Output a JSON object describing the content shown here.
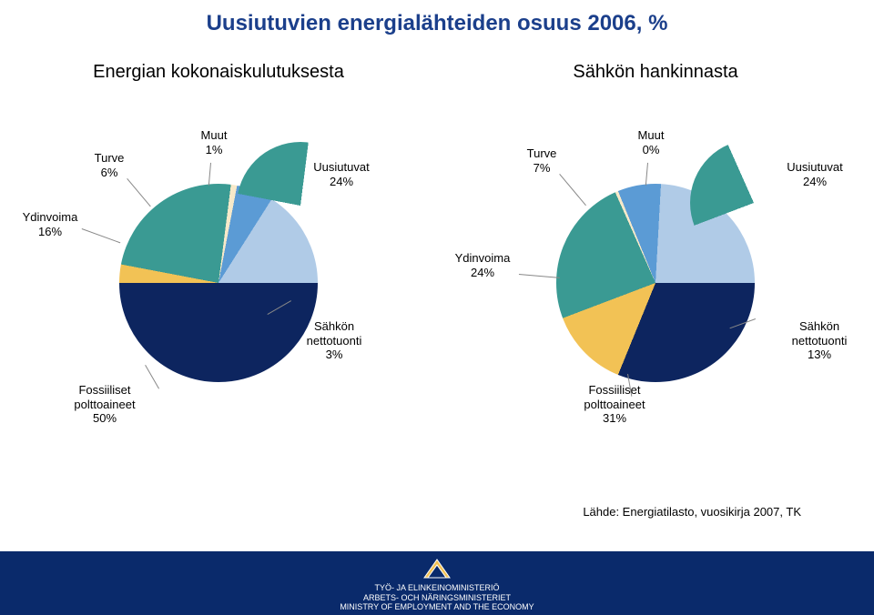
{
  "title": {
    "text": "Uusiutuvien energialähteiden osuus 2006, %",
    "color": "#1b3f8b",
    "fontsize": 24
  },
  "subtitle_left": {
    "text": "Energian kokonaiskulutuksesta",
    "fontsize": 20
  },
  "subtitle_right": {
    "text": "Sähkön hankinnasta",
    "fontsize": 20
  },
  "source": {
    "text": "Lähde: Energiatilasto, vuosikirja 2007, TK",
    "fontsize": 13
  },
  "footer": {
    "line1": "TYÖ- JA ELINKEINOMINISTERIÖ",
    "line2": "ARBETS- OCH NÄRINGSMINISTERIET",
    "line3": "MINISTRY OF EMPLOYMENT AND THE ECONOMY",
    "fontsize": 9,
    "bg": "#0a2a6b"
  },
  "chart_left": {
    "type": "pie_exploded",
    "main_diameter": 220,
    "sub_diameter": 140,
    "slices": [
      {
        "name": "Fossiiliset polttoaineet",
        "value": 50,
        "color": "#0d255f",
        "label": "Fossiiliset\npolttoaineet\n50%"
      },
      {
        "name": "Sähkön nettotuonti",
        "value": 3,
        "color": "#f2c255",
        "label": "Sähkön\nnettotuonti\n3%"
      },
      {
        "name": "Uusiutuvat",
        "value": 24,
        "color": "#3a9a93",
        "label": "Uusiutuvat\n24%",
        "exploded": true
      },
      {
        "name": "Muut",
        "value": 1,
        "color": "#f7e9c9",
        "label": "Muut\n1%"
      },
      {
        "name": "Turve",
        "value": 6,
        "color": "#5b9bd5",
        "label": "Turve\n6%"
      },
      {
        "name": "Ydinvoima",
        "value": 16,
        "color": "#b0cbe7",
        "label": "Ydinvoima\n16%"
      }
    ],
    "label_fontsize": 13
  },
  "chart_right": {
    "type": "pie_exploded",
    "main_diameter": 220,
    "sub_diameter": 140,
    "slices": [
      {
        "name": "Fossiiliset polttoaineet",
        "value": 31,
        "color": "#0d255f",
        "label": "Fossiiliset\npolttoaineet\n31%"
      },
      {
        "name": "Sähkön nettotuonti",
        "value": 13,
        "color": "#f2c255",
        "label": "Sähkön\nnettotuonti\n13%"
      },
      {
        "name": "Uusiutuvat",
        "value": 24,
        "color": "#3a9a93",
        "label": "Uusiutuvat\n24%",
        "exploded": true
      },
      {
        "name": "Muut",
        "value": 0.5,
        "color": "#f7e9c9",
        "label": "Muut\n0%"
      },
      {
        "name": "Turve",
        "value": 7,
        "color": "#5b9bd5",
        "label": "Turve\n7%"
      },
      {
        "name": "Ydinvoima",
        "value": 24,
        "color": "#b0cbe7",
        "label": "Ydinvoima\n24%"
      }
    ],
    "label_fontsize": 13
  }
}
